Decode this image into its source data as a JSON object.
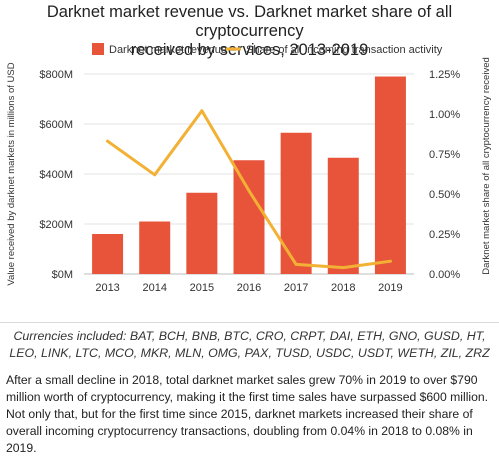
{
  "figure": {
    "title_line1": "Darknet market revenue vs. Darknet market share of all cryptocurrency",
    "title_line2": "received by services, 2013-2019"
  },
  "chart_data": {
    "type": "bar",
    "categories": [
      "2013",
      "2014",
      "2015",
      "2016",
      "2017",
      "2018",
      "2019"
    ],
    "series": [
      {
        "name": "Darknet market revenue",
        "type": "bar",
        "axis": "left",
        "color": "#e8543a",
        "values": [
          160,
          210,
          325,
          455,
          565,
          465,
          790
        ]
      },
      {
        "name": "Share of all incoming transaction activity",
        "type": "line",
        "axis": "right",
        "color": "#f2b134",
        "values": [
          0.83,
          0.62,
          1.02,
          0.52,
          0.06,
          0.04,
          0.08
        ]
      }
    ],
    "ylabel": "Value received by darknet markets in millions of USD",
    "y2label": "Darknet market share of all cryptocurrency received",
    "ylim": [
      0,
      800
    ],
    "y2lim": [
      0,
      1.25
    ],
    "yticks": [
      "$0M",
      "$200M",
      "$400M",
      "$600M",
      "$800M"
    ],
    "y2ticks": [
      "0.00%",
      "0.25%",
      "0.50%",
      "0.75%",
      "1.00%",
      "1.25%"
    ],
    "grid": true,
    "legend": "top-center"
  },
  "notes": {
    "currencies": "Currencies included: BAT, BCH, BNB, BTC, CRO, CRPT, DAI, ETH, GNO, GUSD, HT, LEO, LINK, LTC, MCO, MKR, MLN, OMG, PAX, TUSD, USDC, USDT, WETH, ZIL, ZRZ",
    "paragraph": "After a small decline in 2018, total darknet market sales grew 70% in 2019 to over $790 million worth of cryptocurrency, making it the first time sales have surpassed $600 million. Not only that, but for the first time since 2015, darknet markets increased their share of overall incoming cryptocurrency transactions, doubling from 0.04% in 2018 to 0.08% in 2019."
  }
}
